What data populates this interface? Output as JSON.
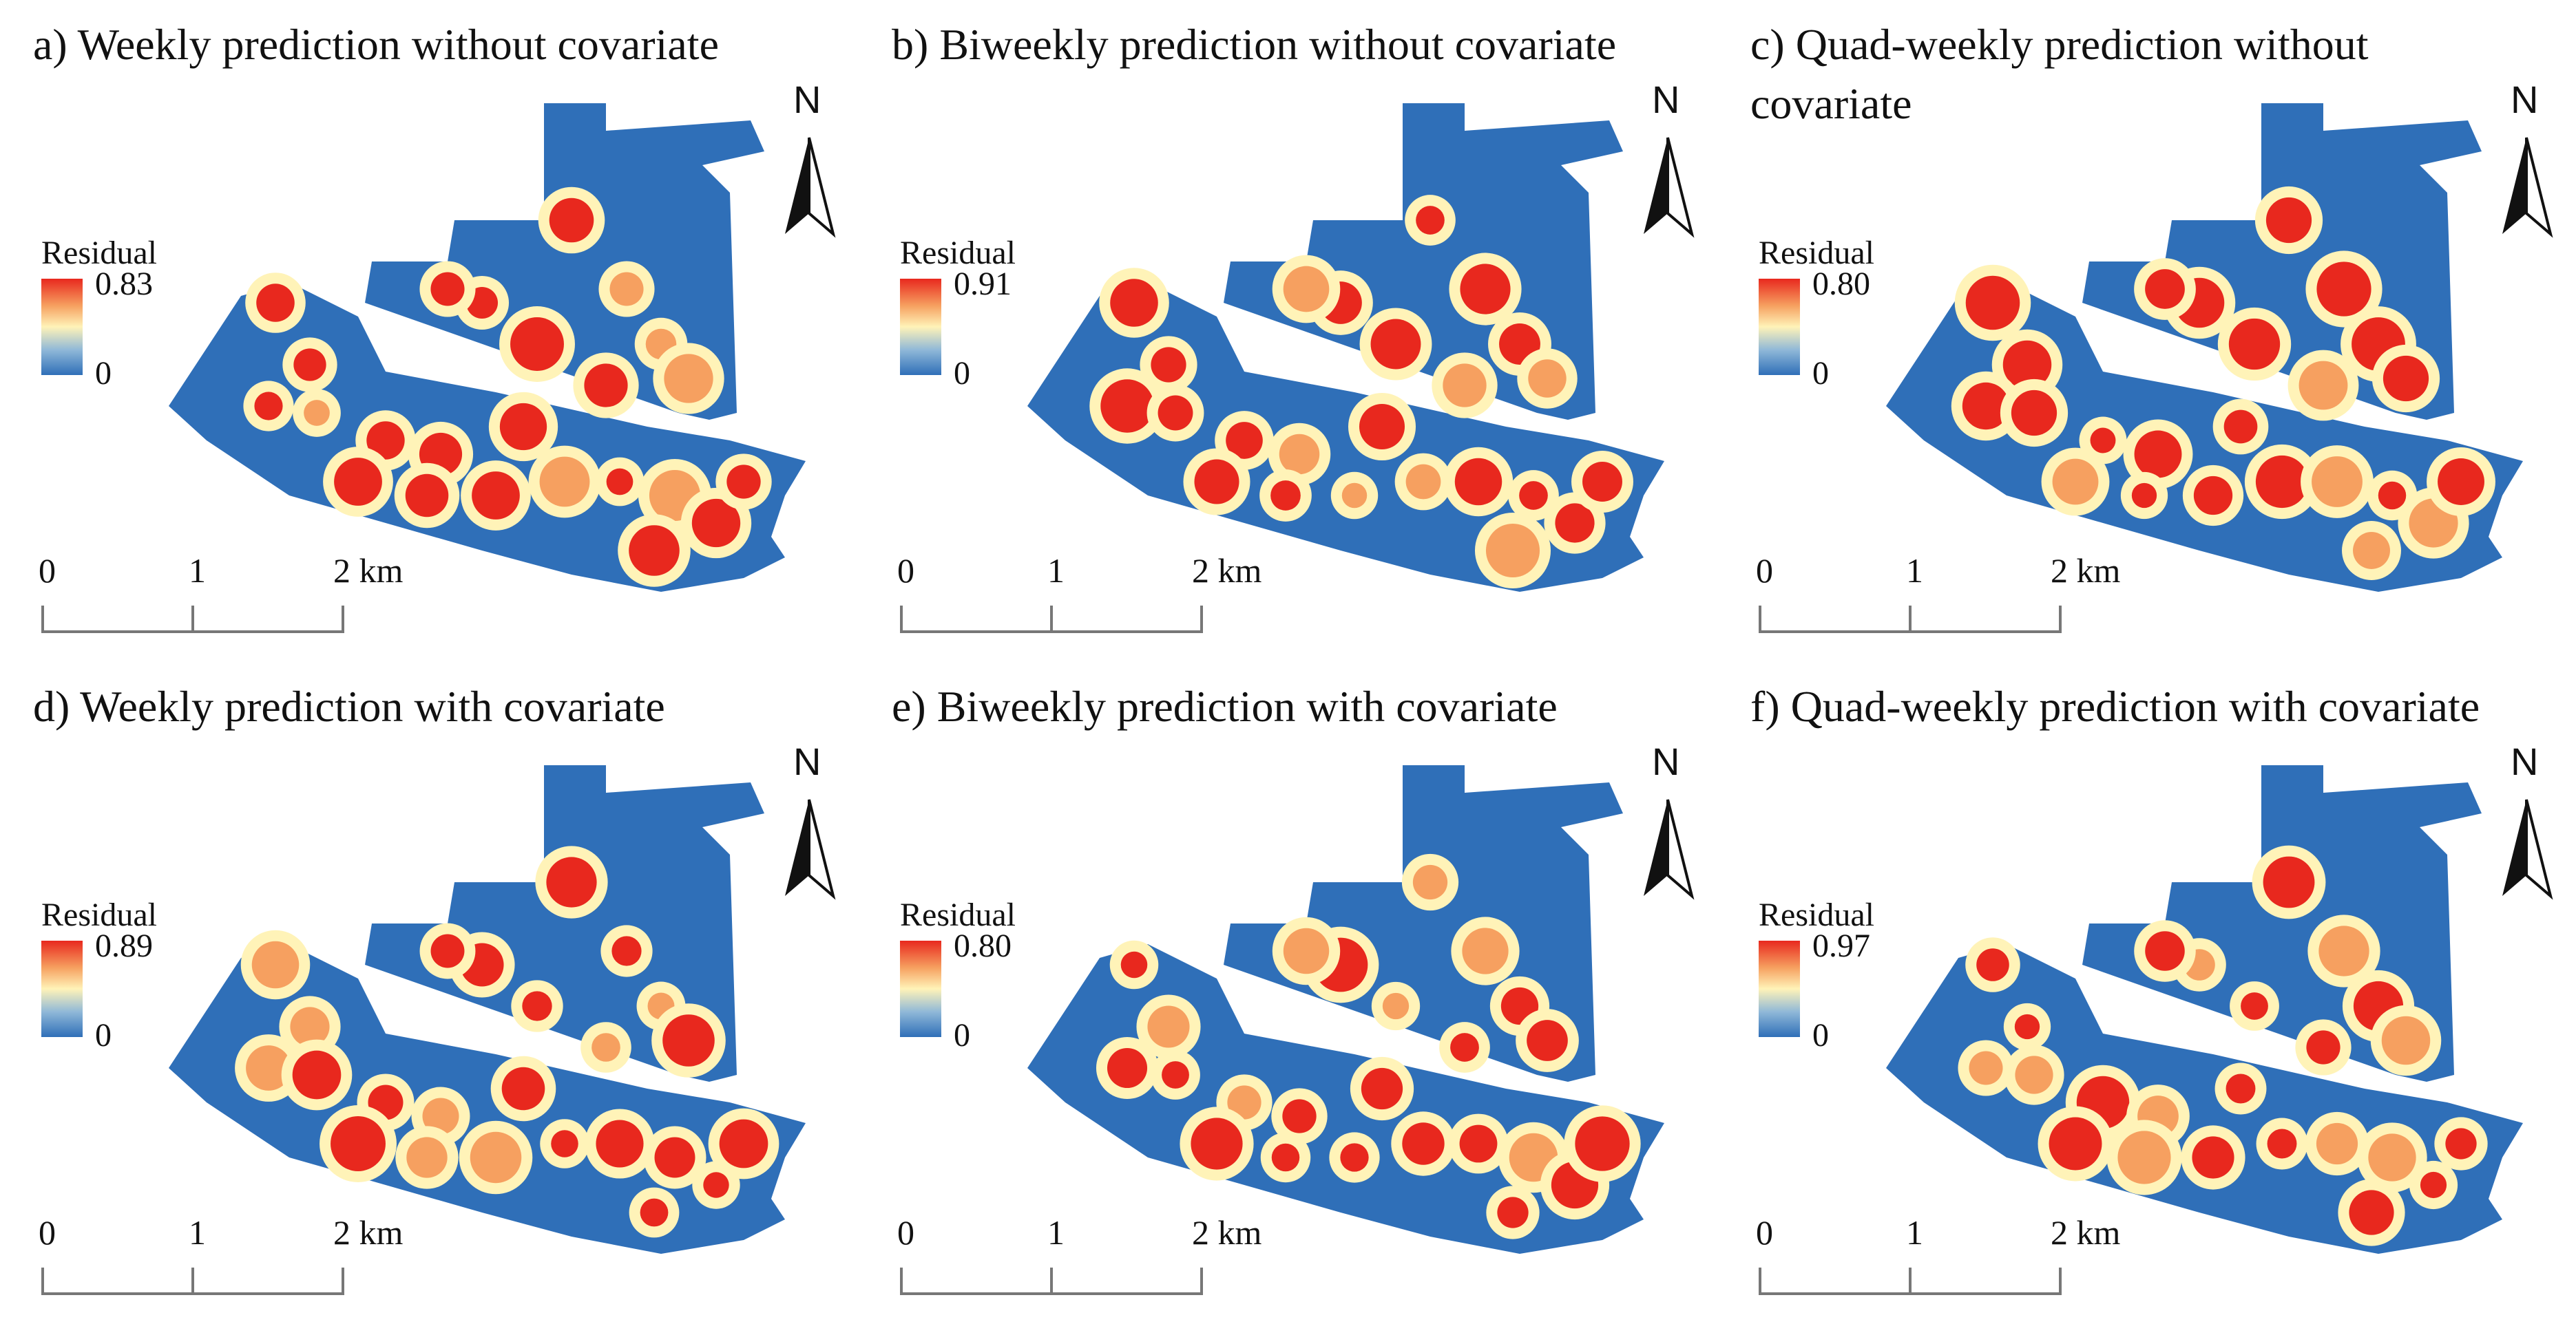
{
  "figure": {
    "north_label": "N",
    "legend_title": "Residual",
    "legend_min": "0",
    "scale_labels": [
      "0",
      "1",
      "2 km"
    ],
    "colors": {
      "low": "#2f6fb8",
      "mid": "#fff3b8",
      "high": "#e8281e"
    }
  },
  "panels": [
    {
      "id": "a",
      "title": "a) Weekly prediction without covariate",
      "legend_max": "0.83"
    },
    {
      "id": "b",
      "title": "b) Biweekly prediction without covariate",
      "legend_max": "0.91"
    },
    {
      "id": "c",
      "title": "c) Quad-weekly prediction without covariate",
      "legend_max": "0.80"
    },
    {
      "id": "d",
      "title": "d) Weekly prediction with covariate",
      "legend_max": "0.89"
    },
    {
      "id": "e",
      "title": "e) Biweekly prediction with covariate",
      "legend_max": "0.80"
    },
    {
      "id": "f",
      "title": "f) Quad-weekly prediction with covariate",
      "legend_max": "0.97"
    }
  ]
}
